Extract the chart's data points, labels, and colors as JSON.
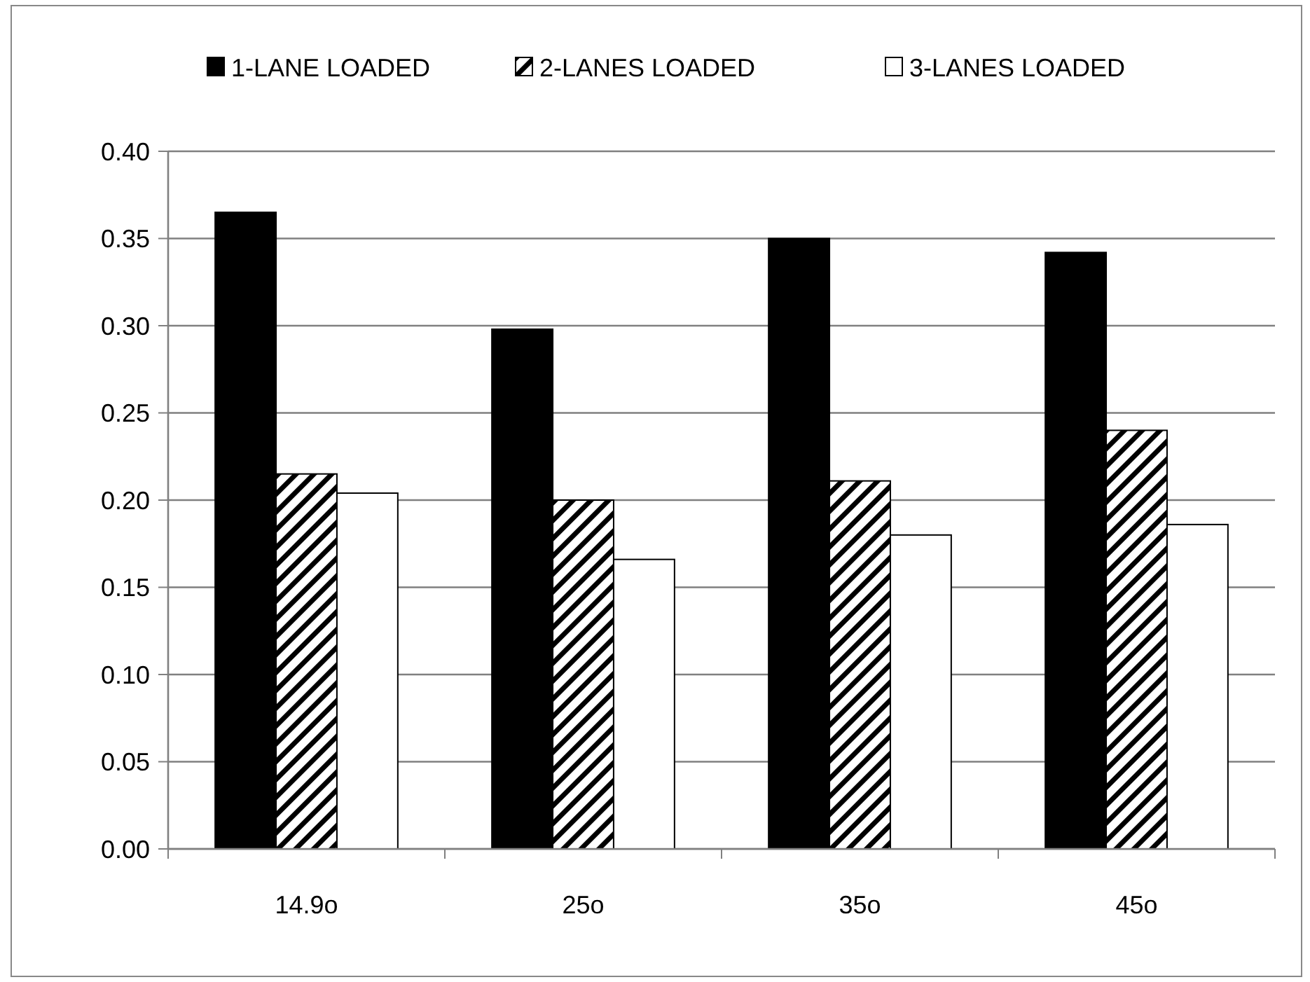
{
  "chart_data": {
    "type": "bar",
    "categories": [
      "14.9o",
      "25o",
      "35o",
      "45o"
    ],
    "series": [
      {
        "name": "1-LANE LOADED",
        "color": "#000000",
        "values": [
          0.365,
          0.298,
          0.35,
          0.342
        ]
      },
      {
        "name": "2-LANES LOADED",
        "color": "#000000",
        "values": [
          0.215,
          0.2,
          0.211,
          0.24
        ]
      },
      {
        "name": "3-LANES LOADED",
        "color": "#ffffff",
        "values": [
          0.204,
          0.166,
          0.18,
          0.186
        ]
      }
    ],
    "ylim": [
      0,
      0.4
    ],
    "yticks": [
      {
        "value": 0,
        "label": "0.00"
      },
      {
        "value": 0.05,
        "label": "0.05"
      },
      {
        "value": 0.1,
        "label": "0.10"
      },
      {
        "value": 0.15,
        "label": "0.15"
      },
      {
        "value": 0.2,
        "label": "0.20"
      },
      {
        "value": 0.25,
        "label": "0.25"
      },
      {
        "value": 0.3,
        "label": "0.30"
      },
      {
        "value": 0.35,
        "label": "0.35"
      },
      {
        "value": 0.4,
        "label": "0.40"
      }
    ],
    "grid": "y",
    "legend": "top"
  }
}
